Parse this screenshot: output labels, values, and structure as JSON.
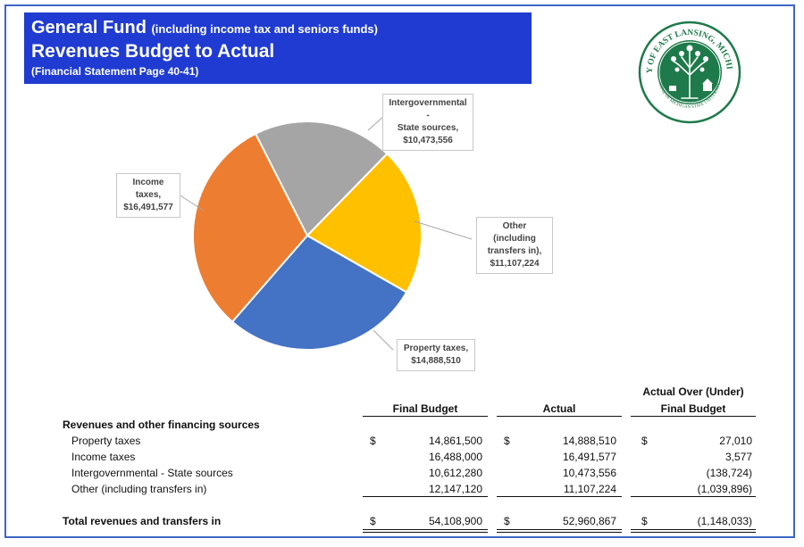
{
  "header": {
    "title_main": "General Fund",
    "title_sub": "(including income tax and seniors funds)",
    "title_line2": "Revenues Budget to Actual",
    "title_line3": "(Financial Statement Page 40-41)"
  },
  "seal": {
    "text_top": "CITY OF EAST LANSING, MICHIGAN",
    "text_bottom": "HOME OF MICHIGAN STATE UNIVERSITY",
    "colors": {
      "ring": "#1e7a4a",
      "tree": "#1e7a4a",
      "bg": "#ffffff"
    }
  },
  "chart_data": {
    "type": "pie",
    "title": "",
    "slices": [
      {
        "label": "Intergovernmental - State sources",
        "value": 10473556,
        "value_label": "$10,473,556",
        "color": "#a5a5a5"
      },
      {
        "label": "Other (including transfers in)",
        "value": 11107224,
        "value_label": "$11,107,224",
        "color": "#ffc000"
      },
      {
        "label": "Property taxes",
        "value": 14888510,
        "value_label": "$14,888,510",
        "color": "#4472c4"
      },
      {
        "label": "Income taxes",
        "value": 16491577,
        "value_label": "$16,491,577",
        "color": "#ed7d31"
      }
    ],
    "callouts": {
      "intergov": [
        "Intergovernmental -",
        "State sources,",
        "$10,473,556"
      ],
      "other": [
        "Other (including",
        "transfers in),",
        "$11,107,224"
      ],
      "property": [
        "Property taxes,",
        "$14,888,510"
      ],
      "income": [
        "Income taxes,",
        "$16,491,577"
      ]
    }
  },
  "table": {
    "col_final_budget": "Final Budget",
    "col_actual": "Actual",
    "col_variance_line1": "Actual Over (Under)",
    "col_variance_line2": "Final Budget",
    "section_label": "Revenues and other financing sources",
    "currency": "$",
    "rows": [
      {
        "label": "Property taxes",
        "final_budget": "14,861,500",
        "actual": "14,888,510",
        "variance": "27,010"
      },
      {
        "label": "Income taxes",
        "final_budget": "16,488,000",
        "actual": "16,491,577",
        "variance": "3,577"
      },
      {
        "label": "Intergovernmental - State sources",
        "final_budget": "10,612,280",
        "actual": "10,473,556",
        "variance": "(138,724)"
      },
      {
        "label": "Other (including transfers in)",
        "final_budget": "12,147,120",
        "actual": "11,107,224",
        "variance": "(1,039,896)"
      }
    ],
    "total": {
      "label": "Total revenues and transfers in",
      "final_budget": "54,108,900",
      "actual": "52,960,867",
      "variance": "(1,148,033)"
    }
  }
}
